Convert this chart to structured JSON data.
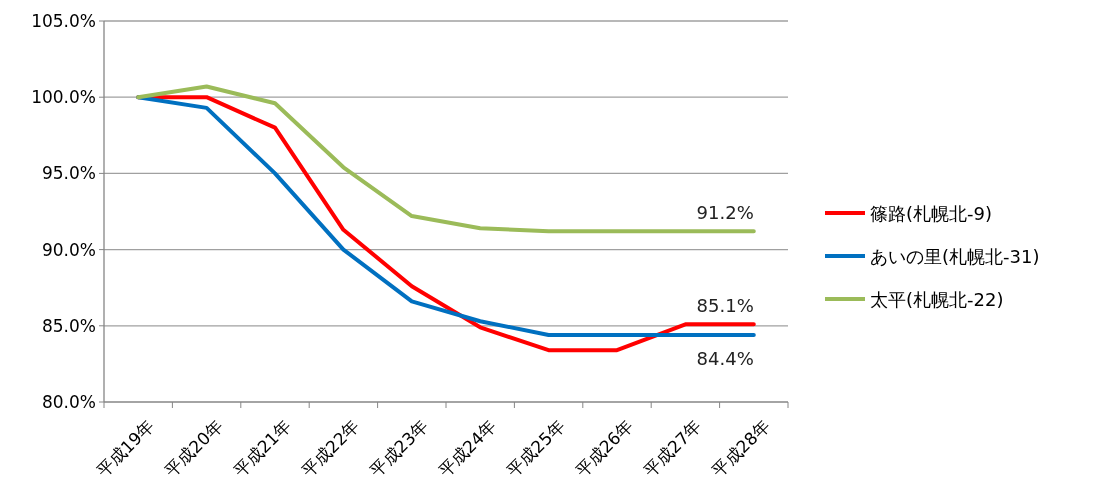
{
  "chart_data": {
    "type": "line",
    "categories": [
      "平成19年",
      "平成20年",
      "平成21年",
      "平成22年",
      "平成23年",
      "平成24年",
      "平成25年",
      "平成26年",
      "平成27年",
      "平成28年"
    ],
    "series": [
      {
        "name": "篠路(札幌北-9)",
        "color": "#ff0000",
        "values": [
          100.0,
          100.0,
          98.0,
          91.3,
          87.6,
          84.9,
          83.4,
          83.4,
          85.1,
          85.1
        ]
      },
      {
        "name": "あいの里(札幌北-31)",
        "color": "#0070c0",
        "values": [
          100.0,
          99.3,
          95.0,
          90.0,
          86.6,
          85.3,
          84.4,
          84.4,
          84.4,
          84.4
        ]
      },
      {
        "name": "太平(札幌北-22)",
        "color": "#9bbb59",
        "values": [
          100.0,
          100.7,
          99.6,
          95.4,
          92.2,
          91.4,
          91.2,
          91.2,
          91.2,
          91.2
        ]
      }
    ],
    "ylim": [
      80,
      105
    ],
    "yticks": [
      {
        "value": 80,
        "label": "80.0%"
      },
      {
        "value": 85,
        "label": "85.0%"
      },
      {
        "value": 90,
        "label": "90.0%"
      },
      {
        "value": 95,
        "label": "95.0%"
      },
      {
        "value": 100,
        "label": "100.0%"
      },
      {
        "value": 105,
        "label": "105.0%"
      }
    ],
    "grid": "y",
    "legend": "right",
    "marker": "none",
    "line_style": "solid",
    "annotations": [
      {
        "text": "91.2%",
        "x": "平成28年",
        "y": 91.2
      },
      {
        "text": "85.1%",
        "x": "平成28年",
        "y": 85.1
      },
      {
        "text": "84.4%",
        "x": "平成28年",
        "y": 84.4
      }
    ]
  }
}
